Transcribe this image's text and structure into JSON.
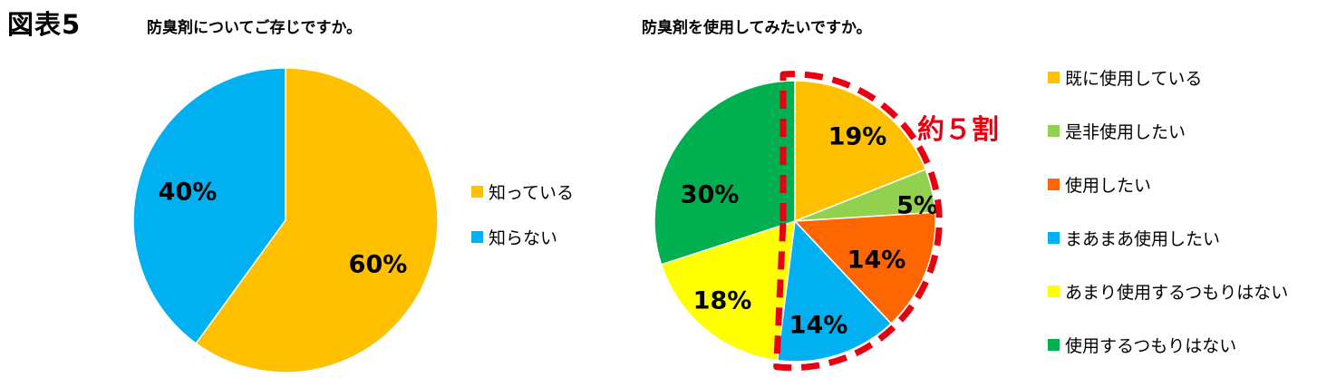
{
  "figure_label": "図表5",
  "chart_data": [
    {
      "type": "pie",
      "title": "防臭剤についてご存じですか。",
      "slices": [
        {
          "label": "知っている",
          "value": 60,
          "display": "60%",
          "color": "#FFC000"
        },
        {
          "label": "知らない",
          "value": 40,
          "display": "40%",
          "color": "#00B0F0"
        }
      ],
      "legend_position": "right"
    },
    {
      "type": "pie",
      "title": "防臭剤を使用してみたいですか。",
      "slices": [
        {
          "label": "既に使用している",
          "value": 19,
          "display": "19%",
          "color": "#FFC000"
        },
        {
          "label": "是非使用したい",
          "value": 5,
          "display": "5%",
          "color": "#92D050"
        },
        {
          "label": "使用したい",
          "value": 14,
          "display": "14%",
          "color": "#FF6600"
        },
        {
          "label": "まあまあ使用したい",
          "value": 14,
          "display": "14%",
          "color": "#00B0F0"
        },
        {
          "label": "あまり使用するつもりはない",
          "value": 18,
          "display": "18%",
          "color": "#FFFF00"
        },
        {
          "label": "使用するつもりはない",
          "value": 30,
          "display": "30%",
          "color": "#00B050"
        }
      ],
      "legend_position": "right",
      "annotation": {
        "text": "約５割",
        "color": "#E60012"
      }
    }
  ]
}
